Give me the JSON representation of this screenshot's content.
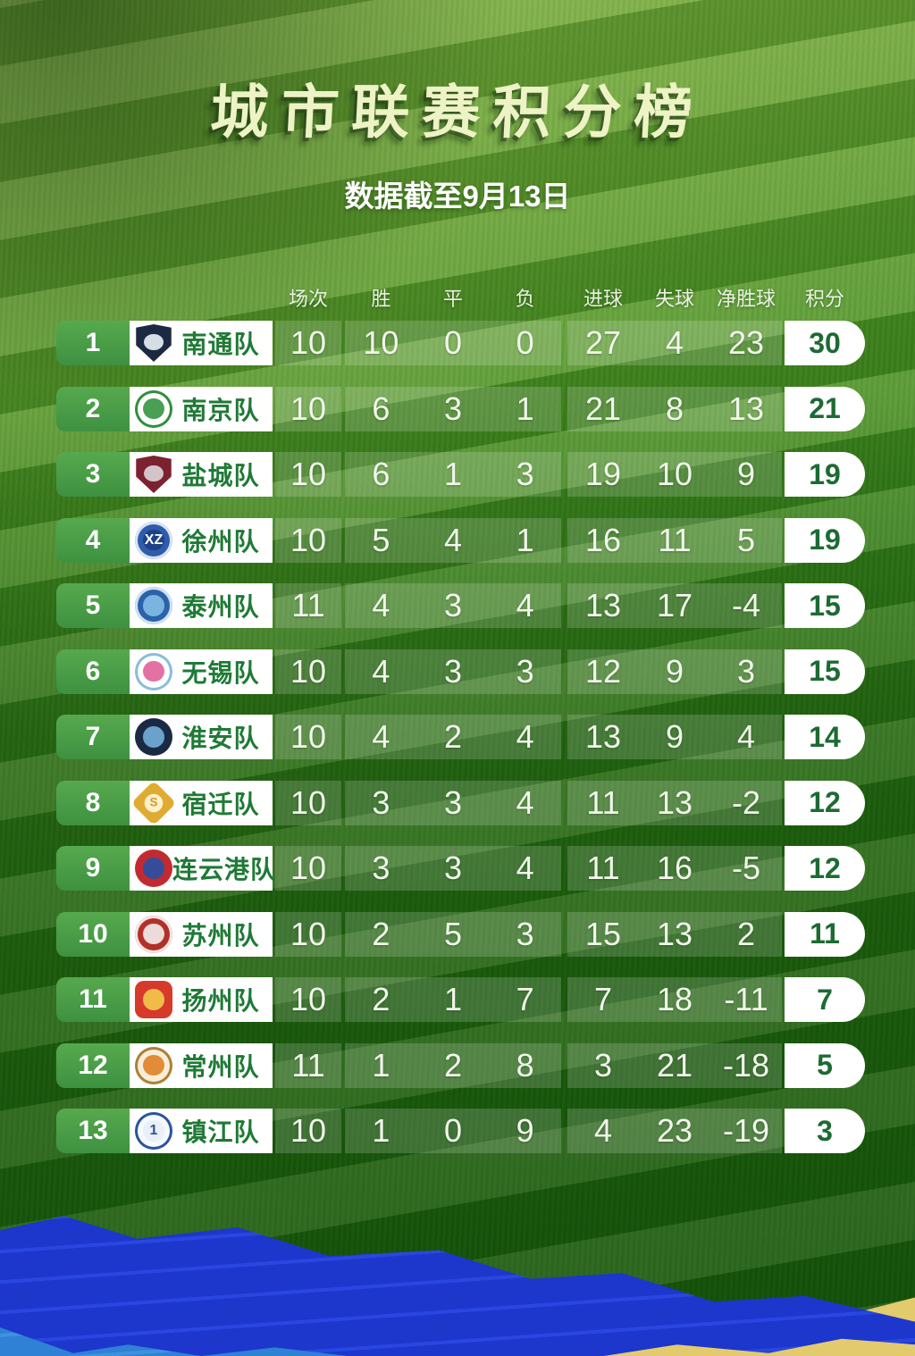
{
  "title": "城市联赛积分榜",
  "subtitle": "数据截至9月13日",
  "chart_data": {
    "type": "table",
    "title": "城市联赛积分榜",
    "subtitle": "数据截至9月13日",
    "columns": [
      "场次",
      "胜",
      "平",
      "负",
      "进球",
      "失球",
      "净胜球",
      "积分"
    ],
    "rows": [
      {
        "rank": 1,
        "team": "南通队",
        "played": 10,
        "win": 10,
        "draw": 0,
        "loss": 0,
        "gf": 27,
        "ga": 4,
        "gd": 23,
        "pts": 30,
        "logo": {
          "shape": "shield",
          "bg": "#1b2942",
          "ring": "",
          "accent": "#dfe7ee",
          "label": "",
          "label_color": ""
        }
      },
      {
        "rank": 2,
        "team": "南京队",
        "played": 10,
        "win": 6,
        "draw": 3,
        "loss": 1,
        "gf": 21,
        "ga": 8,
        "gd": 13,
        "pts": 21,
        "logo": {
          "shape": "circle",
          "bg": "#ffffff",
          "ring": "#2f8f3b",
          "accent": "#3f9a4a",
          "label": "",
          "label_color": ""
        }
      },
      {
        "rank": 3,
        "team": "盐城队",
        "played": 10,
        "win": 6,
        "draw": 1,
        "loss": 3,
        "gf": 19,
        "ga": 10,
        "gd": 9,
        "pts": 19,
        "logo": {
          "shape": "shield",
          "bg": "#7c2130",
          "ring": "",
          "accent": "#d8cdd3",
          "label": "",
          "label_color": ""
        }
      },
      {
        "rank": 4,
        "team": "徐州队",
        "played": 10,
        "win": 5,
        "draw": 4,
        "loss": 1,
        "gf": 16,
        "ga": 11,
        "gd": 5,
        "pts": 19,
        "logo": {
          "shape": "circle",
          "bg": "#2f5cab",
          "ring": "#d9e4f4",
          "accent": "#1d3f85",
          "label": "XZ",
          "label_color": "#ffffff"
        }
      },
      {
        "rank": 5,
        "team": "泰州队",
        "played": 11,
        "win": 4,
        "draw": 3,
        "loss": 4,
        "gf": 13,
        "ga": 17,
        "gd": -4,
        "pts": 15,
        "logo": {
          "shape": "circle",
          "bg": "#2b62ab",
          "ring": "#cfe2f2",
          "accent": "#7db9e3",
          "label": "",
          "label_color": ""
        }
      },
      {
        "rank": 6,
        "team": "无锡队",
        "played": 10,
        "win": 4,
        "draw": 3,
        "loss": 3,
        "gf": 12,
        "ga": 9,
        "gd": 3,
        "pts": 15,
        "logo": {
          "shape": "circle",
          "bg": "#ffffff",
          "ring": "#8abbdd",
          "accent": "#e06a9f",
          "label": "",
          "label_color": ""
        }
      },
      {
        "rank": 7,
        "team": "淮安队",
        "played": 10,
        "win": 4,
        "draw": 2,
        "loss": 4,
        "gf": 13,
        "ga": 9,
        "gd": 4,
        "pts": 14,
        "logo": {
          "shape": "circle",
          "bg": "#1a2a45",
          "ring": "",
          "accent": "#6fa9d4",
          "label": "",
          "label_color": ""
        }
      },
      {
        "rank": 8,
        "team": "宿迁队",
        "played": 10,
        "win": 3,
        "draw": 3,
        "loss": 4,
        "gf": 11,
        "ga": 13,
        "gd": -2,
        "pts": 12,
        "logo": {
          "shape": "diamond",
          "bg": "#e0ab31",
          "ring": "",
          "accent": "#fdf3d8",
          "label": "S",
          "label_color": "#d79c22"
        }
      },
      {
        "rank": 9,
        "team": "连云港队",
        "played": 10,
        "win": 3,
        "draw": 3,
        "loss": 4,
        "gf": 11,
        "ga": 16,
        "gd": -5,
        "pts": 12,
        "logo": {
          "shape": "circle",
          "bg": "#c22a31",
          "ring": "",
          "accent": "#2d4f9e",
          "label": "",
          "label_color": ""
        }
      },
      {
        "rank": 10,
        "team": "苏州队",
        "played": 10,
        "win": 2,
        "draw": 5,
        "loss": 3,
        "gf": 15,
        "ga": 13,
        "gd": 2,
        "pts": 11,
        "logo": {
          "shape": "circle",
          "bg": "#b23029",
          "ring": "#f3e6e2",
          "accent": "#efe5e1",
          "label": "",
          "label_color": ""
        }
      },
      {
        "rank": 11,
        "team": "扬州队",
        "played": 10,
        "win": 2,
        "draw": 1,
        "loss": 7,
        "gf": 7,
        "ga": 18,
        "gd": -11,
        "pts": 7,
        "logo": {
          "shape": "square",
          "bg": "#d63a2b",
          "ring": "",
          "accent": "#f2c24c",
          "label": "",
          "label_color": ""
        }
      },
      {
        "rank": 12,
        "team": "常州队",
        "played": 11,
        "win": 1,
        "draw": 2,
        "loss": 8,
        "gf": 3,
        "ga": 21,
        "gd": -18,
        "pts": 5,
        "logo": {
          "shape": "circle",
          "bg": "#f6eed8",
          "ring": "#ad7f35",
          "accent": "#e0862f",
          "label": "",
          "label_color": ""
        }
      },
      {
        "rank": 13,
        "team": "镇江队",
        "played": 10,
        "win": 1,
        "draw": 0,
        "loss": 9,
        "gf": 4,
        "ga": 23,
        "gd": -19,
        "pts": 3,
        "logo": {
          "shape": "circle",
          "bg": "#f6f9fd",
          "ring": "#2b539f",
          "accent": "#e8eff8",
          "label": "1",
          "label_color": "#2b539f"
        }
      }
    ]
  },
  "colors": {
    "title_text": "#eef3c6",
    "rank_pill_green": "#3e9140",
    "team_name_green": "#1f7a36",
    "points_green": "#1c6b33",
    "stat_number": "#f2f6ec",
    "brush_dark_blue": "#1d36cc",
    "brush_light_blue": "#2e81d4",
    "brush_yellow": "#e3cb6d"
  }
}
